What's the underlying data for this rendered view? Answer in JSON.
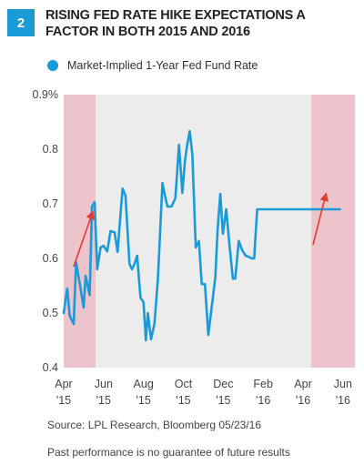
{
  "figure_number": "2",
  "title": "RISING FED RATE HIKE EXPECTATIONS A FACTOR IN BOTH 2015 AND 2016",
  "source": "Source: LPL Research, Bloomberg   05/23/16",
  "disclaimer": "Past performance is no guarantee of future results",
  "colors": {
    "line": "#1a9ad6",
    "shade_pink": "#edc3cc",
    "shade_gray": "#ececec",
    "arrow": "#e03c31"
  },
  "chart_data": {
    "type": "line",
    "title": "",
    "xlabel": "",
    "ylabel": "",
    "ylim": [
      0.4,
      0.9
    ],
    "y_ticks": [
      "0.4",
      "0.5",
      "0.6",
      "0.7",
      "0.8",
      "0.9%"
    ],
    "x_ticks": [
      {
        "month": "Apr",
        "year": "'15",
        "x": 0
      },
      {
        "month": "Jun",
        "year": "'15",
        "x": 2
      },
      {
        "month": "Aug",
        "year": "'15",
        "x": 4
      },
      {
        "month": "Oct",
        "year": "'15",
        "x": 6
      },
      {
        "month": "Dec",
        "year": "'15",
        "x": 8
      },
      {
        "month": "Feb",
        "year": "'16",
        "x": 10
      },
      {
        "month": "Apr",
        "year": "'16",
        "x": 12
      },
      {
        "month": "Jun",
        "year": "'16",
        "x": 14
      }
    ],
    "xlim": [
      0,
      14.6
    ],
    "shaded_regions": [
      {
        "from": 0,
        "to": 1.6,
        "style": "pink"
      },
      {
        "from": 1.6,
        "to": 12.4,
        "style": "gray"
      },
      {
        "from": 12.4,
        "to": 14.6,
        "style": "pink"
      }
    ],
    "series": [
      {
        "name": "Market-Implied 1-Year Fed Fund Rate",
        "x": [
          0,
          0.18,
          0.3,
          0.5,
          0.62,
          0.82,
          1.0,
          1.1,
          1.3,
          1.42,
          1.55,
          1.68,
          1.85,
          2.0,
          2.18,
          2.35,
          2.55,
          2.7,
          2.95,
          3.1,
          3.3,
          3.42,
          3.55,
          3.68,
          3.85,
          4.0,
          4.12,
          4.22,
          4.38,
          4.55,
          4.72,
          4.95,
          5.08,
          5.2,
          5.4,
          5.6,
          5.78,
          5.95,
          6.08,
          6.2,
          6.32,
          6.45,
          6.62,
          6.78,
          6.92,
          7.08,
          7.25,
          7.42,
          7.6,
          7.72,
          7.85,
          7.98,
          8.15,
          8.32,
          8.48,
          8.6,
          8.78,
          8.95,
          9.12,
          9.28,
          9.42,
          9.55,
          9.7,
          9.85,
          10.02,
          10.2,
          10.35,
          10.5,
          10.65,
          10.82,
          10.98,
          11.12,
          11.28,
          11.45,
          11.6,
          11.72,
          11.85,
          12.02,
          12.2,
          12.38,
          12.55,
          12.7,
          12.85,
          13.0,
          13.12,
          13.28,
          13.45,
          13.62,
          13.78,
          13.85
        ],
        "y": [
          0.5,
          0.545,
          0.495,
          0.48,
          0.593,
          0.55,
          0.51,
          0.568,
          0.533,
          0.695,
          0.703,
          0.58,
          0.62,
          0.623,
          0.613,
          0.65,
          0.648,
          0.612,
          0.728,
          0.715,
          0.59,
          0.58,
          0.59,
          0.605,
          0.528,
          0.52,
          0.45,
          0.5,
          0.452,
          0.48,
          0.562,
          0.738,
          0.715,
          0.695,
          0.695,
          0.71,
          0.808,
          0.72,
          0.78,
          0.81,
          0.833,
          0.79,
          0.62,
          0.632,
          0.553,
          0.553,
          0.46,
          0.51,
          0.565,
          0.655,
          0.718,
          0.645,
          0.69,
          0.62,
          0.563,
          0.563,
          0.632,
          0.615,
          0.605,
          0.603,
          0.6,
          0.6,
          0.69,
          0.69,
          0.69,
          0.69,
          0.69,
          0.69,
          0.69,
          0.69,
          0.69,
          0.69,
          0.69,
          0.69,
          0.69,
          0.69,
          0.69,
          0.69,
          0.69,
          0.69,
          0.69,
          0.69,
          0.69,
          0.69,
          0.69,
          0.69,
          0.69,
          0.69,
          0.69,
          0.69
        ]
      }
    ],
    "arrows": [
      {
        "from": [
          0.5,
          0.585
        ],
        "to": [
          1.45,
          0.685
        ]
      },
      {
        "from": [
          12.5,
          0.625
        ],
        "to": [
          13.15,
          0.718
        ]
      }
    ]
  }
}
